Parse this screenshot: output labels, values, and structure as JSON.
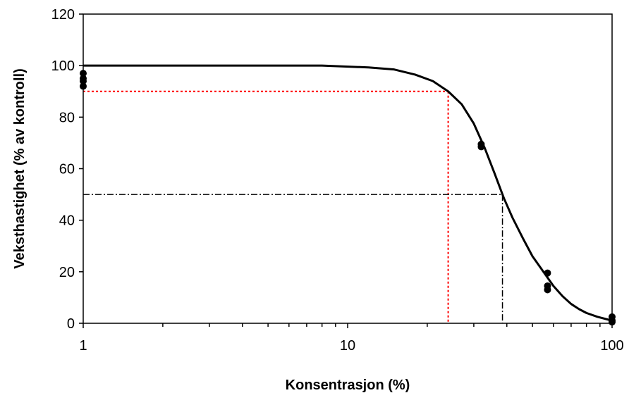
{
  "chart_data": {
    "type": "scatter",
    "xlabel": "Konsentrasjon (%)",
    "ylabel": "Veksthastighet (% av kontroll)",
    "xscale": "log",
    "xlim": [
      1,
      100
    ],
    "ylim": [
      0,
      120
    ],
    "x_ticks": [
      1,
      10,
      100
    ],
    "x_tick_labels": [
      "1",
      "10",
      "100"
    ],
    "y_ticks": [
      0,
      20,
      40,
      60,
      80,
      100,
      120
    ],
    "y_tick_labels": [
      "0",
      "20",
      "40",
      "60",
      "80",
      "100",
      "120"
    ],
    "grid": false,
    "legend": "none",
    "points": {
      "x": [
        1,
        1,
        1,
        1,
        32,
        32,
        57,
        57,
        57,
        100,
        100,
        100
      ],
      "y": [
        97,
        95,
        94,
        92,
        69.5,
        68.5,
        19.5,
        14.5,
        13,
        2.5,
        1,
        0.5
      ]
    },
    "fit_curve": {
      "x": [
        1,
        8,
        12,
        15,
        18,
        21,
        24,
        27,
        30,
        33,
        36,
        39,
        42,
        46,
        50,
        55,
        60,
        65,
        70,
        75,
        80,
        88,
        96,
        100
      ],
      "y": [
        100,
        100,
        99.3,
        98.5,
        96.5,
        94,
        90,
        85,
        77.5,
        68,
        58,
        48.5,
        41,
        33,
        26,
        20,
        14.5,
        10.5,
        7.5,
        5.5,
        4,
        2.5,
        1.5,
        1
      ]
    },
    "reference_lines": [
      {
        "y": 90,
        "x": 24,
        "color": "#ff0000"
      },
      {
        "y": 50,
        "x": 38.5,
        "color": "#000000"
      }
    ],
    "colors": {
      "curve": "#000000",
      "points": "#000000",
      "ec10": "#ff0000",
      "ec50": "#000000"
    }
  }
}
